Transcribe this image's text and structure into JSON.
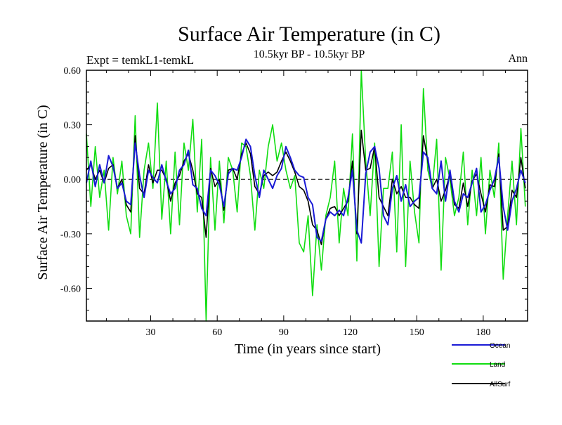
{
  "chart_data": {
    "type": "line",
    "title": "Surface Air Temperature (in C)",
    "subtitle": "10.5kyr BP - 10.5kyr BP",
    "left_label": "Expt = temkL1-temkL",
    "right_label": "Ann",
    "xlabel": "Time (in years since start)",
    "ylabel": "Surface Air Temperature (in C)",
    "xlim": [
      1,
      200
    ],
    "ylim": [
      -0.78,
      0.6
    ],
    "x_ticks": [
      30,
      60,
      90,
      120,
      150,
      180
    ],
    "y_ticks": [
      -0.6,
      -0.3,
      0.0,
      0.3,
      0.6
    ],
    "y_tick_labels": [
      "-0.60",
      "-0.30",
      "0.00",
      "0.30",
      "0.60"
    ],
    "zero_line": true,
    "series": [
      {
        "name": "Ocean",
        "color": "#1a1ad6",
        "x": [
          1,
          3,
          5,
          7,
          9,
          11,
          13,
          15,
          17,
          19,
          21,
          23,
          25,
          27,
          29,
          31,
          33,
          35,
          37,
          39,
          41,
          43,
          45,
          47,
          49,
          51,
          53,
          55,
          57,
          59,
          61,
          63,
          65,
          67,
          69,
          71,
          73,
          75,
          77,
          79,
          81,
          83,
          85,
          87,
          89,
          91,
          93,
          95,
          97,
          99,
          101,
          103,
          105,
          107,
          109,
          111,
          113,
          115,
          117,
          119,
          121,
          123,
          125,
          127,
          129,
          131,
          133,
          135,
          137,
          139,
          141,
          143,
          145,
          147,
          149,
          151,
          153,
          155,
          157,
          159,
          161,
          163,
          165,
          167,
          169,
          171,
          173,
          175,
          177,
          179,
          181,
          183,
          185,
          187,
          189,
          191,
          193,
          195,
          197,
          199
        ],
        "values": [
          -0.02,
          0.1,
          -0.04,
          0.08,
          -0.02,
          0.13,
          0.07,
          -0.05,
          -0.02,
          -0.12,
          -0.14,
          0.2,
          0.02,
          -0.1,
          0.05,
          0.01,
          -0.02,
          0.08,
          -0.01,
          -0.08,
          -0.05,
          0.05,
          0.08,
          0.16,
          -0.03,
          -0.05,
          -0.16,
          -0.2,
          0.05,
          0.02,
          -0.03,
          -0.15,
          0.03,
          0.06,
          0.05,
          0.12,
          0.22,
          0.18,
          0.02,
          -0.1,
          0.05,
          0.0,
          -0.05,
          0.02,
          0.06,
          0.18,
          0.12,
          0.05,
          0.02,
          0.01,
          -0.1,
          -0.14,
          -0.32,
          -0.34,
          -0.22,
          -0.18,
          -0.2,
          -0.17,
          -0.2,
          -0.1,
          0.05,
          -0.28,
          -0.35,
          0.03,
          0.15,
          0.18,
          0.06,
          -0.2,
          -0.25,
          -0.05,
          0.02,
          -0.12,
          -0.03,
          -0.15,
          -0.12,
          -0.1,
          0.15,
          0.12,
          -0.05,
          -0.08,
          0.1,
          -0.12,
          0.05,
          -0.12,
          -0.18,
          -0.08,
          -0.1,
          -0.02,
          0.06,
          -0.18,
          -0.14,
          -0.06,
          0.0,
          0.12,
          -0.15,
          -0.28,
          -0.12,
          -0.05,
          0.05,
          -0.02
        ]
      },
      {
        "name": "Land",
        "color": "#11dd11",
        "x": [
          1,
          3,
          5,
          7,
          9,
          11,
          13,
          15,
          17,
          19,
          21,
          23,
          25,
          27,
          29,
          31,
          33,
          35,
          37,
          39,
          41,
          43,
          45,
          47,
          49,
          51,
          53,
          55,
          57,
          59,
          61,
          63,
          65,
          67,
          69,
          71,
          73,
          75,
          77,
          79,
          81,
          83,
          85,
          87,
          89,
          91,
          93,
          95,
          97,
          99,
          101,
          103,
          105,
          107,
          109,
          111,
          113,
          115,
          117,
          119,
          121,
          123,
          125,
          127,
          129,
          131,
          133,
          135,
          137,
          139,
          141,
          143,
          145,
          147,
          149,
          151,
          153,
          155,
          157,
          159,
          161,
          163,
          165,
          167,
          169,
          171,
          173,
          175,
          177,
          179,
          181,
          183,
          185,
          187,
          189,
          191,
          193,
          195,
          197,
          199
        ],
        "values": [
          0.25,
          -0.15,
          0.18,
          -0.1,
          0.05,
          -0.28,
          0.12,
          -0.08,
          0.1,
          -0.2,
          -0.3,
          0.35,
          -0.32,
          0.05,
          0.2,
          -0.05,
          0.42,
          -0.22,
          0.1,
          -0.3,
          0.15,
          -0.25,
          0.2,
          0.05,
          0.33,
          -0.18,
          0.22,
          -0.78,
          0.12,
          -0.28,
          0.1,
          -0.24,
          0.12,
          0.05,
          -0.18,
          0.2,
          0.18,
          0.02,
          -0.28,
          0.05,
          -0.05,
          0.18,
          0.3,
          0.1,
          0.2,
          0.05,
          -0.05,
          0.02,
          -0.35,
          -0.4,
          -0.2,
          -0.64,
          -0.25,
          -0.5,
          -0.2,
          -0.1,
          0.1,
          -0.35,
          -0.05,
          -0.2,
          0.25,
          -0.45,
          0.6,
          0.1,
          -0.2,
          0.2,
          -0.48,
          -0.05,
          -0.05,
          0.15,
          -0.4,
          0.3,
          -0.48,
          0.1,
          -0.18,
          -0.35,
          0.5,
          0.05,
          -0.05,
          0.22,
          -0.5,
          0.12,
          0.0,
          -0.2,
          -0.1,
          0.15,
          -0.25,
          0.05,
          -0.2,
          0.12,
          -0.3,
          0.05,
          -0.1,
          0.2,
          -0.55,
          -0.2,
          0.1,
          -0.25,
          0.28,
          -0.15
        ]
      },
      {
        "name": "AllSurf",
        "color": "#000000",
        "x": [
          1,
          3,
          5,
          7,
          9,
          11,
          13,
          15,
          17,
          19,
          21,
          23,
          25,
          27,
          29,
          31,
          33,
          35,
          37,
          39,
          41,
          43,
          45,
          47,
          49,
          51,
          53,
          55,
          57,
          59,
          61,
          63,
          65,
          67,
          69,
          71,
          73,
          75,
          77,
          79,
          81,
          83,
          85,
          87,
          89,
          91,
          93,
          95,
          97,
          99,
          101,
          103,
          105,
          107,
          109,
          111,
          113,
          115,
          117,
          119,
          121,
          123,
          125,
          127,
          129,
          131,
          133,
          135,
          137,
          139,
          141,
          143,
          145,
          147,
          149,
          151,
          153,
          155,
          157,
          159,
          161,
          163,
          165,
          167,
          169,
          171,
          173,
          175,
          177,
          179,
          181,
          183,
          185,
          187,
          189,
          191,
          193,
          195,
          197,
          199
        ],
        "values": [
          0.05,
          0.08,
          0.0,
          0.05,
          -0.02,
          0.06,
          0.08,
          -0.05,
          0.0,
          -0.14,
          -0.18,
          0.24,
          -0.05,
          -0.08,
          0.08,
          -0.02,
          0.05,
          0.05,
          0.0,
          -0.12,
          -0.02,
          0.02,
          0.1,
          0.14,
          0.05,
          -0.08,
          -0.1,
          -0.32,
          0.06,
          -0.04,
          0.0,
          -0.17,
          0.05,
          0.06,
          0.0,
          0.14,
          0.2,
          0.14,
          -0.04,
          -0.08,
          0.02,
          0.04,
          0.02,
          0.04,
          0.1,
          0.15,
          0.1,
          0.04,
          -0.04,
          -0.06,
          -0.12,
          -0.25,
          -0.28,
          -0.36,
          -0.22,
          -0.16,
          -0.15,
          -0.2,
          -0.16,
          -0.12,
          0.1,
          -0.3,
          0.27,
          0.05,
          0.06,
          0.18,
          -0.1,
          -0.15,
          -0.2,
          0.0,
          -0.08,
          -0.04,
          -0.1,
          -0.1,
          -0.14,
          -0.16,
          0.24,
          0.1,
          -0.05,
          0.0,
          -0.12,
          -0.06,
          0.03,
          -0.14,
          -0.16,
          -0.02,
          -0.15,
          -0.01,
          0.03,
          -0.08,
          -0.18,
          -0.03,
          -0.04,
          0.14,
          -0.28,
          -0.26,
          -0.06,
          -0.1,
          0.12,
          -0.05
        ]
      }
    ]
  }
}
